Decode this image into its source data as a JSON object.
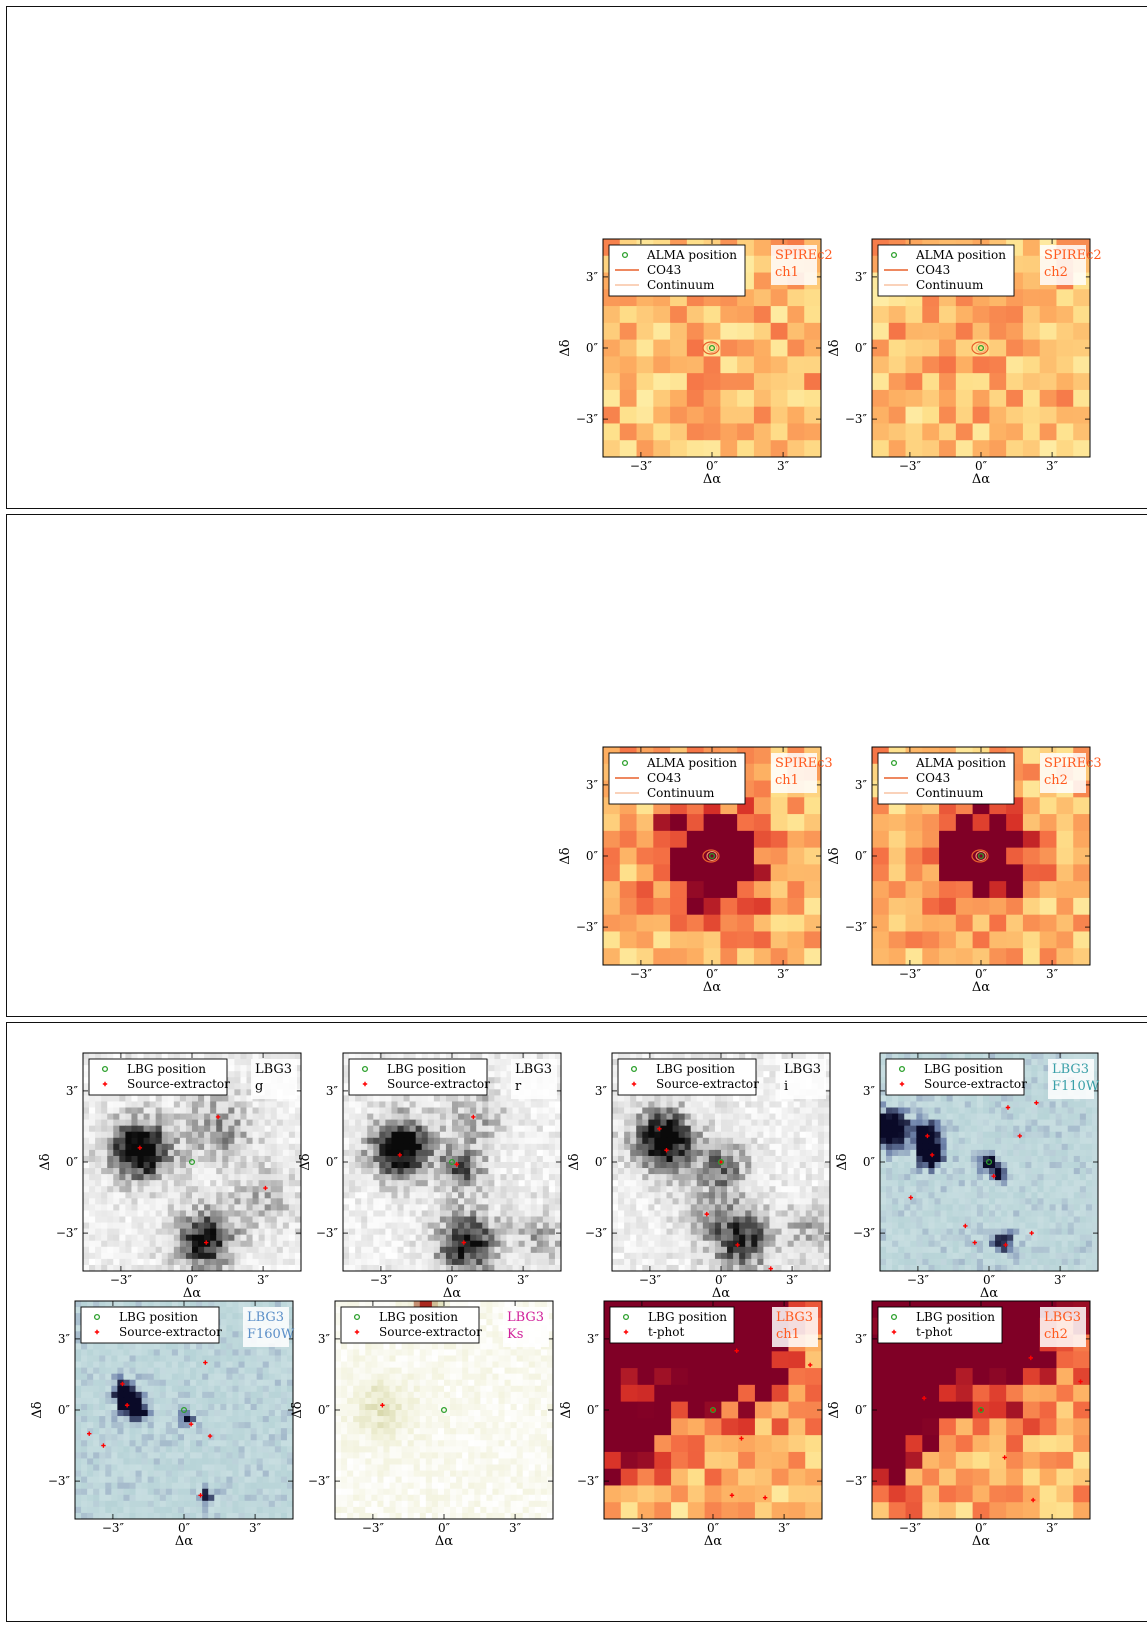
{
  "legend_alma": [
    "ALMA position",
    "CO43",
    "Continuum"
  ],
  "legend_lbg_se": [
    "LBG position",
    "Source-extractor"
  ],
  "legend_lbg_tphot": [
    "LBG position",
    "t-phot"
  ],
  "axes": {
    "xlabel": "Δα",
    "ylabel": "Δδ",
    "ticks": [
      -3,
      0,
      3
    ],
    "tick_labels": [
      "−3″",
      "0″",
      "3″"
    ],
    "range": [
      -4.6,
      4.6
    ]
  },
  "colors": {
    "green_marker": "#2ca02c",
    "red_marker": "#ff0000",
    "co43_line": "#e8602c",
    "continuum_line": "#f4a574",
    "label_orange": "#ff5a1f",
    "label_teal": "#3aa0a8",
    "label_blue": "#5b8fc8",
    "label_magenta": "#d0209a"
  },
  "sections": [
    {
      "name": "spire-c2",
      "panels": [
        {
          "source": "SPIREc2",
          "band": "ch1",
          "legend": "alma",
          "cmap": "hot",
          "seed": 11,
          "blob": [
            0,
            0,
            0.0,
            1.5
          ],
          "contour": true,
          "markers_green": [
            [
              0,
              0
            ]
          ],
          "markers_red": []
        },
        {
          "source": "SPIREc2",
          "band": "ch2",
          "legend": "alma",
          "cmap": "hot",
          "seed": 23,
          "blob": [
            0,
            0,
            0.0,
            1.5
          ],
          "contour": true,
          "markers_green": [
            [
              0,
              0
            ]
          ],
          "markers_red": []
        }
      ]
    },
    {
      "name": "spire-c3",
      "panels": [
        {
          "source": "SPIREc3",
          "band": "ch1",
          "legend": "alma",
          "cmap": "hot",
          "seed": 37,
          "blob": [
            0,
            -0.2,
            1.0,
            1.6
          ],
          "contour": true,
          "markers_green": [
            [
              0,
              0
            ]
          ],
          "markers_red": []
        },
        {
          "source": "SPIREc3",
          "band": "ch2",
          "legend": "alma",
          "cmap": "hot",
          "seed": 41,
          "blob": [
            0,
            0,
            1.0,
            1.4
          ],
          "contour": true,
          "markers_green": [
            [
              0,
              0
            ]
          ],
          "markers_red": []
        }
      ]
    },
    {
      "name": "lbg3",
      "panels": [
        {
          "source": "LBG3",
          "band": "g",
          "legend": "se",
          "cmap": "gray",
          "seed": 5,
          "label_color": "#000000",
          "blobs": [
            [
              -2.2,
              0.5,
              1.0,
              0.9
            ],
            [
              0.5,
              -3.3,
              0.8,
              0.9
            ],
            [
              1.1,
              1.4,
              0.4,
              1.0
            ],
            [
              3.0,
              -1.5,
              0.25,
              1.0
            ]
          ],
          "markers_green": [
            [
              0,
              0
            ]
          ],
          "markers_red": [
            [
              -2.2,
              0.6
            ],
            [
              1.1,
              1.9
            ],
            [
              3.1,
              -1.1
            ],
            [
              0.6,
              -3.4
            ]
          ]
        },
        {
          "source": "LBG3",
          "band": "r",
          "legend": "se",
          "cmap": "gray",
          "seed": 7,
          "label_color": "#000000",
          "blobs": [
            [
              -2.2,
              0.6,
              1.0,
              0.9
            ],
            [
              0.4,
              -0.3,
              0.55,
              0.7
            ],
            [
              0.6,
              -3.4,
              0.8,
              0.9
            ],
            [
              1.0,
              1.9,
              0.3,
              0.9
            ],
            [
              3.7,
              -3.2,
              0.3,
              0.8
            ]
          ],
          "markers_green": [
            [
              0,
              0
            ]
          ],
          "markers_red": [
            [
              -2.2,
              0.3
            ],
            [
              0.2,
              -0.1
            ],
            [
              0.9,
              1.9
            ],
            [
              0.5,
              -3.4
            ]
          ]
        },
        {
          "source": "LBG3",
          "band": "i",
          "legend": "se",
          "cmap": "gray",
          "seed": 9,
          "label_color": "#000000",
          "blobs": [
            [
              -2.4,
              0.9,
              1.0,
              0.9
            ],
            [
              0.1,
              -0.2,
              0.55,
              0.75
            ],
            [
              0.9,
              -3.3,
              0.7,
              0.9
            ],
            [
              -0.6,
              -2.2,
              0.3,
              0.8
            ],
            [
              3.8,
              -2.9,
              0.3,
              0.8
            ]
          ],
          "markers_green": [
            [
              0,
              0
            ]
          ],
          "markers_red": [
            [
              -2.6,
              1.4
            ],
            [
              -2.3,
              0.5
            ],
            [
              0,
              0
            ],
            [
              -0.6,
              -2.2
            ],
            [
              0.7,
              -3.5
            ],
            [
              2.1,
              -4.5
            ]
          ]
        },
        {
          "source": "LBG3",
          "band": "F110W",
          "legend": "se",
          "cmap": "teal",
          "seed": 13,
          "label_color": "#3aa0a8",
          "blobs": [
            [
              -4.2,
              1.4,
              1.2,
              0.5
            ],
            [
              -2.6,
              1.1,
              0.9,
              0.4
            ],
            [
              -2.5,
              0.2,
              0.9,
              0.35
            ],
            [
              0,
              -0.1,
              0.6,
              0.3
            ],
            [
              0.6,
              -3.3,
              0.6,
              0.35
            ],
            [
              0.5,
              -0.6,
              0.5,
              0.25
            ]
          ],
          "markers_green": [
            [
              0,
              0
            ]
          ],
          "markers_red": [
            [
              -2.6,
              1.1
            ],
            [
              -2.4,
              0.3
            ],
            [
              0.2,
              -0.6
            ],
            [
              -3.3,
              -1.5
            ],
            [
              -1.0,
              -2.7
            ],
            [
              -0.6,
              -3.4
            ],
            [
              0.7,
              -3.5
            ],
            [
              1.8,
              -3.0
            ],
            [
              0.8,
              2.3
            ],
            [
              2.0,
              2.5
            ],
            [
              1.3,
              1.1
            ]
          ]
        },
        {
          "source": "LBG3",
          "band": "F160W",
          "legend": "se",
          "cmap": "teal",
          "seed": 17,
          "label_color": "#5b8fc8",
          "blobs": [
            [
              -2.5,
              0.8,
              0.8,
              0.35
            ],
            [
              -2.3,
              0.2,
              0.9,
              0.35
            ],
            [
              -1.7,
              -0.1,
              0.5,
              0.3
            ],
            [
              0.1,
              -0.4,
              0.5,
              0.3
            ],
            [
              0.9,
              -3.6,
              0.4,
              0.3
            ]
          ],
          "markers_green": [
            [
              0,
              0
            ]
          ],
          "markers_red": [
            [
              -4.0,
              -1.0
            ],
            [
              -3.4,
              -1.5
            ],
            [
              -2.6,
              1.1
            ],
            [
              -2.4,
              0.2
            ],
            [
              0.3,
              -0.6
            ],
            [
              0.7,
              -3.6
            ],
            [
              0.9,
              2.0
            ],
            [
              1.1,
              -1.1
            ],
            [
              1.9,
              -4.7
            ]
          ]
        },
        {
          "source": "LBG3",
          "band": "Ks",
          "legend": "se",
          "cmap": "olive",
          "seed": 19,
          "label_color": "#d0209a",
          "blobs": [
            [
              -2.6,
              0.1,
              0.45,
              0.9
            ],
            [
              -0.7,
              4.7,
              0.9,
              0.5
            ]
          ],
          "markers_green": [
            [
              0,
              0
            ]
          ],
          "markers_red": [
            [
              -2.6,
              0.2
            ]
          ]
        },
        {
          "source": "LBG3",
          "band": "ch1",
          "legend": "tphot",
          "cmap": "hot",
          "seed": 29,
          "label_color": "#ff5a1f",
          "blobs": [
            [
              -1.0,
              5.2,
              1.6,
              3.0
            ],
            [
              -4.8,
              -1.0,
              0.9,
              1.5
            ],
            [
              0.8,
              2.8,
              0.6,
              1.4
            ]
          ],
          "markers_green": [
            [
              0,
              0
            ]
          ],
          "markers_red": [
            [
              0,
              0
            ],
            [
              1.0,
              2.5
            ],
            [
              4.1,
              1.9
            ],
            [
              1.2,
              -1.2
            ],
            [
              0.8,
              -3.6
            ],
            [
              2.2,
              -3.7
            ]
          ]
        },
        {
          "source": "LBG3",
          "band": "ch2",
          "legend": "tphot",
          "cmap": "hot",
          "seed": 31,
          "label_color": "#ff5a1f",
          "blobs": [
            [
              -0.6,
              5.2,
              1.6,
              3.0
            ],
            [
              -4.8,
              -1.2,
              0.9,
              1.6
            ],
            [
              -3.0,
              0.2,
              0.6,
              1.0
            ]
          ],
          "markers_green": [
            [
              0,
              0
            ]
          ],
          "markers_red": [
            [
              0,
              0
            ],
            [
              -2.4,
              0.5
            ],
            [
              2.1,
              2.2
            ],
            [
              4.2,
              1.2
            ],
            [
              1.0,
              -2.0
            ],
            [
              2.2,
              -3.8
            ],
            [
              0.9,
              -4.7
            ]
          ]
        }
      ]
    }
  ]
}
